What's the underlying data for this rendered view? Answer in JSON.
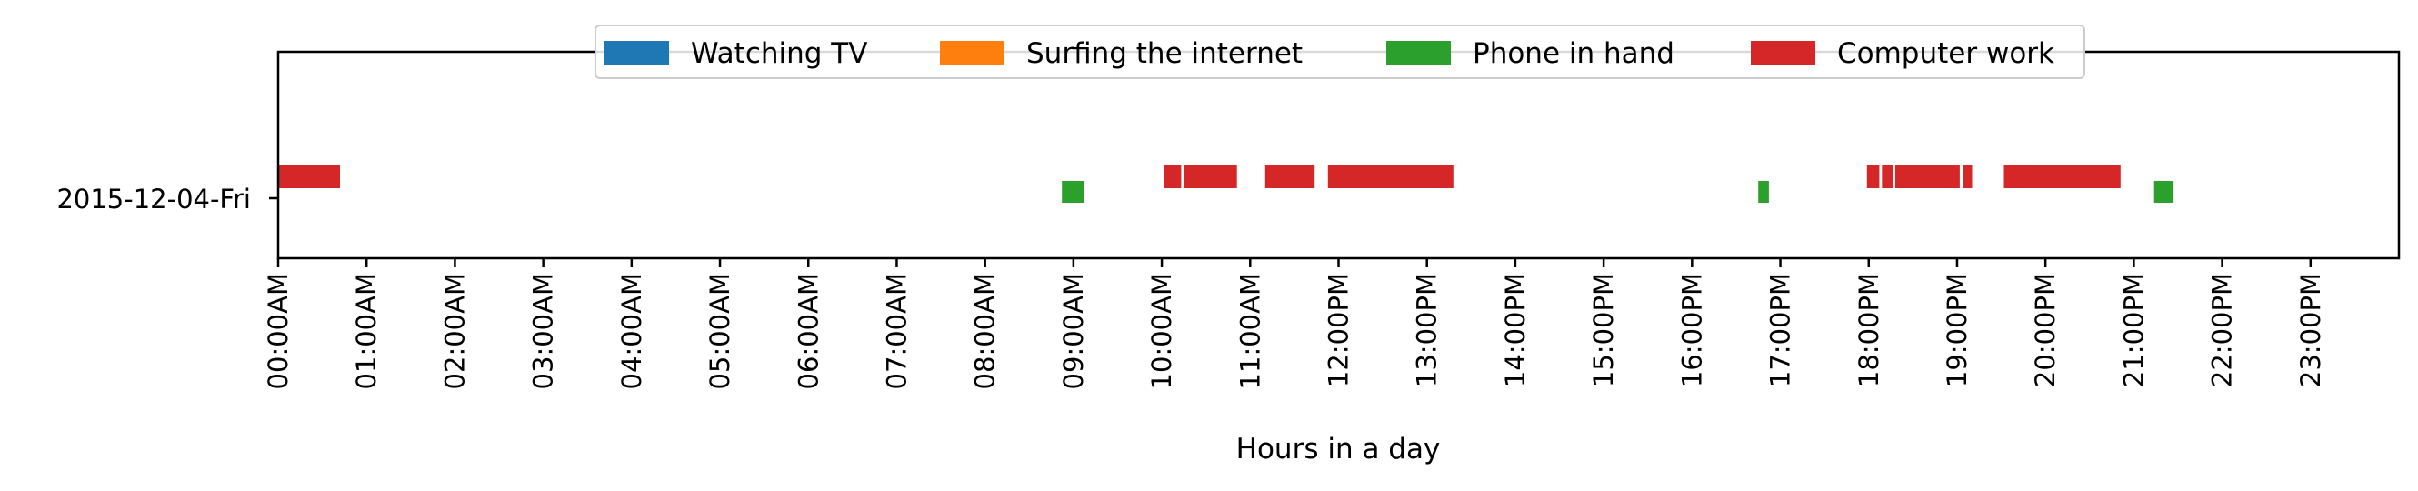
{
  "chart_data": {
    "type": "timeline",
    "title": "",
    "xlabel": "Hours in a day",
    "ylabel": "",
    "xlim": [
      0,
      24
    ],
    "x_ticks": [
      "00:00AM",
      "01:00AM",
      "02:00AM",
      "03:00AM",
      "04:00AM",
      "05:00AM",
      "06:00AM",
      "07:00AM",
      "08:00AM",
      "09:00AM",
      "10:00AM",
      "11:00AM",
      "12:00PM",
      "13:00PM",
      "14:00PM",
      "15:00PM",
      "16:00PM",
      "17:00PM",
      "18:00PM",
      "19:00PM",
      "20:00PM",
      "21:00PM",
      "22:00PM",
      "23:00PM"
    ],
    "categories": [
      "2015-12-04-Fri"
    ],
    "legend_position": "top-center",
    "grid": false,
    "series": [
      {
        "name": "Watching TV",
        "color": "#1f77b4",
        "row": "2015-12-04-Fri",
        "level": "high",
        "intervals": []
      },
      {
        "name": "Surfing the internet",
        "color": "#ff7f0e",
        "row": "2015-12-04-Fri",
        "level": "high",
        "intervals": []
      },
      {
        "name": "Phone in hand",
        "color": "#2ca02c",
        "row": "2015-12-04-Fri",
        "level": "low",
        "intervals": [
          [
            8.87,
            9.12
          ],
          [
            16.75,
            16.87
          ],
          [
            21.23,
            21.45
          ]
        ]
      },
      {
        "name": "Computer work",
        "color": "#d62728",
        "row": "2015-12-04-Fri",
        "level": "high",
        "intervals": [
          [
            0.0,
            0.7
          ],
          [
            10.02,
            10.22
          ],
          [
            10.25,
            10.85
          ],
          [
            11.17,
            11.73
          ],
          [
            11.88,
            13.3
          ],
          [
            17.98,
            18.12
          ],
          [
            18.15,
            18.27
          ],
          [
            18.3,
            19.03
          ],
          [
            19.07,
            19.17
          ],
          [
            19.53,
            20.85
          ]
        ]
      }
    ]
  }
}
